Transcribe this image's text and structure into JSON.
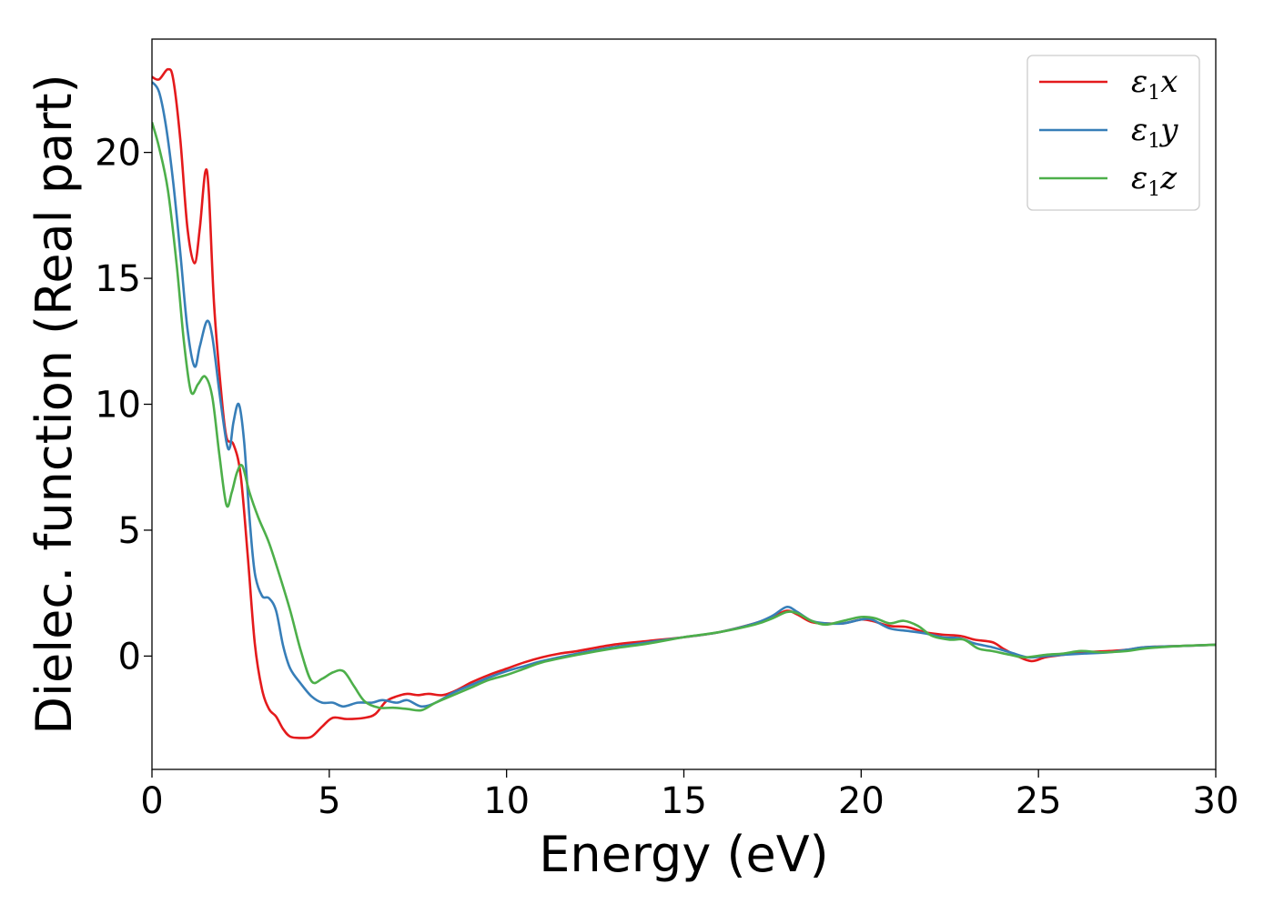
{
  "chart_data": {
    "type": "line",
    "xlabel": "Energy (eV)",
    "ylabel": "Dielec. function (Real part)",
    "xlim": [
      0,
      30
    ],
    "ylim": [
      -4.5,
      24.5
    ],
    "xticks": [
      0,
      5,
      10,
      15,
      20,
      25,
      30
    ],
    "yticks": [
      0,
      5,
      10,
      15,
      20
    ],
    "grid": false,
    "legend_position": "top-right",
    "series": [
      {
        "name": "ε1x",
        "legend": {
          "base": "ε",
          "sub": "1",
          "suffix": "x"
        },
        "color": "#e41a1c",
        "points": [
          [
            0,
            23.0
          ],
          [
            0.2,
            22.9
          ],
          [
            0.45,
            23.3
          ],
          [
            0.6,
            22.9
          ],
          [
            0.8,
            20.5
          ],
          [
            1.0,
            17.0
          ],
          [
            1.2,
            15.6
          ],
          [
            1.35,
            17.0
          ],
          [
            1.5,
            19.2
          ],
          [
            1.6,
            18.5
          ],
          [
            1.75,
            14.0
          ],
          [
            1.95,
            10.5
          ],
          [
            2.1,
            8.7
          ],
          [
            2.3,
            8.4
          ],
          [
            2.5,
            7.2
          ],
          [
            2.7,
            4.0
          ],
          [
            2.9,
            0.5
          ],
          [
            3.1,
            -1.3
          ],
          [
            3.3,
            -2.1
          ],
          [
            3.5,
            -2.4
          ],
          [
            3.7,
            -2.9
          ],
          [
            3.9,
            -3.2
          ],
          [
            4.2,
            -3.25
          ],
          [
            4.5,
            -3.2
          ],
          [
            4.8,
            -2.8
          ],
          [
            5.1,
            -2.45
          ],
          [
            5.5,
            -2.5
          ],
          [
            6.0,
            -2.45
          ],
          [
            6.3,
            -2.3
          ],
          [
            6.6,
            -1.8
          ],
          [
            6.9,
            -1.6
          ],
          [
            7.2,
            -1.5
          ],
          [
            7.5,
            -1.55
          ],
          [
            7.8,
            -1.5
          ],
          [
            8.2,
            -1.55
          ],
          [
            8.6,
            -1.35
          ],
          [
            9.0,
            -1.05
          ],
          [
            9.5,
            -0.75
          ],
          [
            10.0,
            -0.5
          ],
          [
            10.5,
            -0.25
          ],
          [
            11.0,
            -0.05
          ],
          [
            11.5,
            0.1
          ],
          [
            12.0,
            0.2
          ],
          [
            13.0,
            0.45
          ],
          [
            14.0,
            0.6
          ],
          [
            15.0,
            0.75
          ],
          [
            16.0,
            0.95
          ],
          [
            17.0,
            1.3
          ],
          [
            17.5,
            1.55
          ],
          [
            17.9,
            1.8
          ],
          [
            18.2,
            1.65
          ],
          [
            18.6,
            1.35
          ],
          [
            19.0,
            1.3
          ],
          [
            19.5,
            1.3
          ],
          [
            20.0,
            1.45
          ],
          [
            20.3,
            1.4
          ],
          [
            20.8,
            1.2
          ],
          [
            21.3,
            1.15
          ],
          [
            21.8,
            0.95
          ],
          [
            22.3,
            0.85
          ],
          [
            22.8,
            0.8
          ],
          [
            23.2,
            0.65
          ],
          [
            23.7,
            0.55
          ],
          [
            24.0,
            0.3
          ],
          [
            24.4,
            0.0
          ],
          [
            24.8,
            -0.2
          ],
          [
            25.2,
            -0.05
          ],
          [
            25.7,
            0.05
          ],
          [
            26.3,
            0.15
          ],
          [
            27.0,
            0.2
          ],
          [
            27.5,
            0.25
          ],
          [
            28.0,
            0.35
          ],
          [
            29.0,
            0.4
          ],
          [
            30.0,
            0.45
          ]
        ]
      },
      {
        "name": "ε1y",
        "legend": {
          "base": "ε",
          "sub": "1",
          "suffix": "y"
        },
        "color": "#377eb8",
        "points": [
          [
            0,
            22.8
          ],
          [
            0.2,
            22.4
          ],
          [
            0.4,
            21.0
          ],
          [
            0.6,
            18.8
          ],
          [
            0.8,
            16.0
          ],
          [
            1.0,
            13.0
          ],
          [
            1.2,
            11.5
          ],
          [
            1.35,
            12.3
          ],
          [
            1.55,
            13.3
          ],
          [
            1.7,
            12.7
          ],
          [
            1.9,
            10.5
          ],
          [
            2.1,
            8.5
          ],
          [
            2.2,
            8.3
          ],
          [
            2.3,
            9.3
          ],
          [
            2.45,
            10.0
          ],
          [
            2.6,
            8.5
          ],
          [
            2.75,
            5.5
          ],
          [
            2.9,
            3.3
          ],
          [
            3.1,
            2.4
          ],
          [
            3.3,
            2.3
          ],
          [
            3.5,
            1.8
          ],
          [
            3.7,
            0.4
          ],
          [
            3.9,
            -0.5
          ],
          [
            4.2,
            -1.1
          ],
          [
            4.5,
            -1.6
          ],
          [
            4.8,
            -1.85
          ],
          [
            5.1,
            -1.85
          ],
          [
            5.4,
            -2.0
          ],
          [
            5.8,
            -1.85
          ],
          [
            6.2,
            -1.85
          ],
          [
            6.5,
            -1.75
          ],
          [
            6.9,
            -1.85
          ],
          [
            7.2,
            -1.75
          ],
          [
            7.6,
            -2.0
          ],
          [
            8.0,
            -1.85
          ],
          [
            8.5,
            -1.45
          ],
          [
            9.0,
            -1.15
          ],
          [
            9.5,
            -0.85
          ],
          [
            10.0,
            -0.6
          ],
          [
            10.5,
            -0.4
          ],
          [
            11.0,
            -0.2
          ],
          [
            12.0,
            0.1
          ],
          [
            13.0,
            0.35
          ],
          [
            14.0,
            0.55
          ],
          [
            15.0,
            0.75
          ],
          [
            16.0,
            0.95
          ],
          [
            17.0,
            1.3
          ],
          [
            17.5,
            1.6
          ],
          [
            17.9,
            1.95
          ],
          [
            18.2,
            1.75
          ],
          [
            18.6,
            1.4
          ],
          [
            19.0,
            1.3
          ],
          [
            19.5,
            1.3
          ],
          [
            20.0,
            1.45
          ],
          [
            20.3,
            1.45
          ],
          [
            20.8,
            1.1
          ],
          [
            21.3,
            1.0
          ],
          [
            21.8,
            0.9
          ],
          [
            22.3,
            0.75
          ],
          [
            22.8,
            0.7
          ],
          [
            23.2,
            0.5
          ],
          [
            23.7,
            0.35
          ],
          [
            24.2,
            0.15
          ],
          [
            24.7,
            -0.05
          ],
          [
            25.2,
            0.0
          ],
          [
            25.7,
            0.05
          ],
          [
            26.3,
            0.1
          ],
          [
            27.0,
            0.15
          ],
          [
            27.5,
            0.25
          ],
          [
            28.0,
            0.35
          ],
          [
            29.0,
            0.4
          ],
          [
            30.0,
            0.45
          ]
        ]
      },
      {
        "name": "ε1z",
        "legend": {
          "base": "ε",
          "sub": "1",
          "suffix": "z"
        },
        "color": "#4daf4a",
        "points": [
          [
            0,
            21.2
          ],
          [
            0.2,
            20.2
          ],
          [
            0.45,
            18.5
          ],
          [
            0.7,
            15.5
          ],
          [
            0.9,
            12.5
          ],
          [
            1.1,
            10.5
          ],
          [
            1.3,
            10.8
          ],
          [
            1.5,
            11.1
          ],
          [
            1.7,
            10.3
          ],
          [
            1.9,
            8.0
          ],
          [
            2.1,
            6.0
          ],
          [
            2.25,
            6.5
          ],
          [
            2.4,
            7.3
          ],
          [
            2.55,
            7.55
          ],
          [
            2.75,
            6.5
          ],
          [
            3.0,
            5.5
          ],
          [
            3.3,
            4.5
          ],
          [
            3.6,
            3.2
          ],
          [
            3.9,
            1.8
          ],
          [
            4.2,
            0.2
          ],
          [
            4.5,
            -1.0
          ],
          [
            4.8,
            -0.9
          ],
          [
            5.1,
            -0.65
          ],
          [
            5.4,
            -0.6
          ],
          [
            5.7,
            -1.2
          ],
          [
            6.0,
            -1.8
          ],
          [
            6.4,
            -2.05
          ],
          [
            6.8,
            -2.05
          ],
          [
            7.2,
            -2.1
          ],
          [
            7.6,
            -2.15
          ],
          [
            8.0,
            -1.85
          ],
          [
            8.5,
            -1.55
          ],
          [
            9.0,
            -1.25
          ],
          [
            9.5,
            -0.95
          ],
          [
            10.0,
            -0.75
          ],
          [
            10.5,
            -0.5
          ],
          [
            11.0,
            -0.25
          ],
          [
            12.0,
            0.05
          ],
          [
            13.0,
            0.3
          ],
          [
            14.0,
            0.5
          ],
          [
            15.0,
            0.75
          ],
          [
            16.0,
            0.95
          ],
          [
            17.0,
            1.25
          ],
          [
            17.5,
            1.5
          ],
          [
            17.9,
            1.75
          ],
          [
            18.2,
            1.7
          ],
          [
            18.6,
            1.4
          ],
          [
            19.0,
            1.25
          ],
          [
            19.5,
            1.4
          ],
          [
            20.0,
            1.55
          ],
          [
            20.4,
            1.5
          ],
          [
            20.8,
            1.3
          ],
          [
            21.2,
            1.4
          ],
          [
            21.6,
            1.2
          ],
          [
            22.0,
            0.8
          ],
          [
            22.5,
            0.65
          ],
          [
            22.9,
            0.65
          ],
          [
            23.3,
            0.3
          ],
          [
            23.7,
            0.2
          ],
          [
            24.2,
            0.05
          ],
          [
            24.6,
            -0.05
          ],
          [
            25.2,
            0.05
          ],
          [
            25.7,
            0.1
          ],
          [
            26.2,
            0.2
          ],
          [
            26.8,
            0.15
          ],
          [
            27.5,
            0.2
          ],
          [
            28.0,
            0.3
          ],
          [
            29.0,
            0.4
          ],
          [
            30.0,
            0.45
          ]
        ]
      }
    ]
  }
}
